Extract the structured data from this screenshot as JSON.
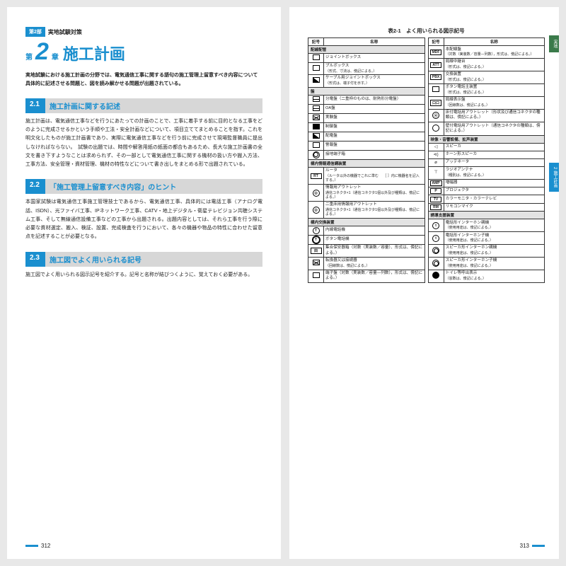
{
  "colors": {
    "accent": "#1a8fcf",
    "section_bg": "#d7d7d7",
    "group_bg": "#e3e3e3"
  },
  "left": {
    "part_badge": "第2部",
    "part_text": "実地試験対策",
    "chapter_prefix": "第",
    "chapter_num": "2",
    "chapter_suffix": "章",
    "chapter_title": "施工計画",
    "intro": "実地試験における施工計画の分野では、電気通信工事に関する語句の施工管理上留意すべき内容について具体的に記述させる問題と、図を読み解かせる問題が出題されている。",
    "sections": [
      {
        "num": "2.1",
        "title": "施工計画に関する記述",
        "body": "施工計画は、電気通信工事などを行うにあたっての計画のことで、工事に着手する前に目的となる工事をどのように完成させるかという手順や工法・安全計画などについて、項目立ててまとめることを指す。これを明文化したものが施工計画書であり、実際に電気通信工事などを行う前に完成させて現場監督職員に提出しなければならない。　試験の出題では、時間や解答用紙の紙面の都合もあるため、長大な施工計画書の全文を書き下すようなことは求められず、その一部として電気通信工事に関する機材の扱い方や搬入方法、工事方法、安全管理・資材管理、機材の特性などについて書き出しをまとめる形で出題されている。"
      },
      {
        "num": "2.2",
        "title": "「施工管理上留意すべき内容」のヒント",
        "body": "本国家試験は電気通信工事施工管理技士であるから、電気通信工事、具体的には電話工事（アナログ電話、ISDN）、光ファイバ工事、IPネットワーク工事、CATV・地上デジタル・衛星テレビジョン共聴システム工事、そして無線通信設備工事などの工事から出題される。出題内容としては、それら工事を行う際に必要な資材選定、搬入、検証、設置、完成検査を行うにおいて、各々の機器や物品の特性に合わせた留意点を記述することが必要となる。"
      },
      {
        "num": "2.3",
        "title": "施工図でよく用いられる記号",
        "body": "施工図でよく用いられる図示記号を紹介する。記号と名称が結びつくように、覚えておく必要がある。"
      }
    ],
    "page_num": "312"
  },
  "right": {
    "caption": "表2-1　よく用いられる図示記号",
    "page_num": "313",
    "tab1": "実地",
    "tab2": "2 施工計画",
    "headers": [
      "記号",
      "名称"
    ],
    "left_table": [
      {
        "group": "配線配管"
      },
      {
        "sym": "box",
        "name": "ジョイントボックス"
      },
      {
        "sym": "box",
        "name": "プルボックス",
        "sub": "（形式、寸法は、傍記による。）"
      },
      {
        "sym": "boxtri",
        "name": "ケーブル用ジョイントボックス",
        "sub": "（形式は、端子付を示す。）"
      },
      {
        "group": "盤"
      },
      {
        "sym": "boxd",
        "name": "分電盤（二重枠のものは、耐熱形分電盤）"
      },
      {
        "sym": "boxd",
        "name": "OA盤"
      },
      {
        "sym": "boxx",
        "name": "実験盤"
      },
      {
        "sym": "boxf",
        "name": "制御盤"
      },
      {
        "sym": "boxtri",
        "name": "配電盤"
      },
      {
        "sym": "box",
        "name": "警報盤"
      },
      {
        "sym": "dblcirc",
        "name": "接地端子箱"
      },
      {
        "group": "構内情報通信網装置"
      },
      {
        "sym": "rect:RT",
        "name": "ルータ",
        "sub": "（ルータ以外の機器でこれに準む　 ［  ］内に機器名を記入する。）"
      },
      {
        "sym": "circdot",
        "name": "情報用アウトレット",
        "sub": "通信コネクタ×1（通信コネクタ1個以外及び種類は、傍記による。）"
      },
      {
        "sym": "circdot2",
        "name": "二重床用情報用アウトレット",
        "sub": "通信コネクタ×1（通信コネクタ1個以外及び種類は、傍記による。）"
      },
      {
        "group": "構内交換装置"
      },
      {
        "sym": "circ:T",
        "name": "内線電話機"
      },
      {
        "sym": "circT2",
        "name": "ボタン電話機"
      },
      {
        "sym": "rect:田",
        "name": "集合保安器箱（対数（実装数／容量）、形式は、傍記による。）"
      },
      {
        "sym": "boxx",
        "name": "転換器又は接続器",
        "sub": "（回線数は、傍記による。）"
      },
      {
        "sym": "box",
        "name": "端子盤（対数（実装数／容量―列数），形式は、傍記による。）"
      }
    ],
    "right_table": [
      {
        "sym": "rect:MDF",
        "name": "本配線盤",
        "sub": "（対数（実装数／容量―列数），形式は、傍記による。）"
      },
      {
        "sym": "rect:ATT",
        "name": "局線中継台",
        "sub": "（形式は、傍記による。）"
      },
      {
        "sym": "rect:PBX",
        "name": "交換装置",
        "sub": "（形式は、傍記による。）"
      },
      {
        "sym": "box",
        "name": "ボタン電話主装置",
        "sub": "（形式は、傍記による。）"
      },
      {
        "sym": "rect:口口",
        "name": "局線表示盤",
        "sub": "（回線数は、傍記による。）"
      },
      {
        "sym": "circQ",
        "name": "床付電話用アウトレット（形状及び通信コネクタの種類は、傍記による。）"
      },
      {
        "sym": "circ",
        "name": "壁付電話用アウトレット（通信コネクタの種類は、傍記による。）"
      },
      {
        "group": "映像・音響設備、拡声装置"
      },
      {
        "sym": "spk",
        "name": "スピーカ"
      },
      {
        "sym": "horn",
        "name": "ホーン形スピーカ"
      },
      {
        "sym": "att",
        "name": "アッテネータ"
      },
      {
        "sym": "ant",
        "name": "ラジオアンテナ",
        "sub": "（種別は、傍記による。）"
      },
      {
        "sym": "rect:AMP",
        "name": "増幅器"
      },
      {
        "sym": "rect:P",
        "name": "プロジェクタ"
      },
      {
        "sym": "rect:TV",
        "name": "カラーモニタ・カラーテレビ"
      },
      {
        "sym": "rect:RM",
        "name": "リモコンマイク"
      },
      {
        "group": "誘導支援装置"
      },
      {
        "sym": "circ:t",
        "name": "電話形インターホン親機",
        "sub": "（使用用途は、傍記による。）"
      },
      {
        "sym": "circ:t",
        "name": "電話形インターホン子機",
        "sub": "（使用用途は、傍記による。）"
      },
      {
        "sym": "dblcirc",
        "name": "スピーカ形インターホン親機",
        "sub": "（使用用途は、傍記による。）"
      },
      {
        "sym": "dblcirc",
        "name": "スピーカ形インターホン子機",
        "sub": "（使用用途は、傍記による。）"
      },
      {
        "sym": "circf",
        "name": "トイレ等呼出表示",
        "sub": "（窓数は、傍記による。）"
      }
    ]
  }
}
